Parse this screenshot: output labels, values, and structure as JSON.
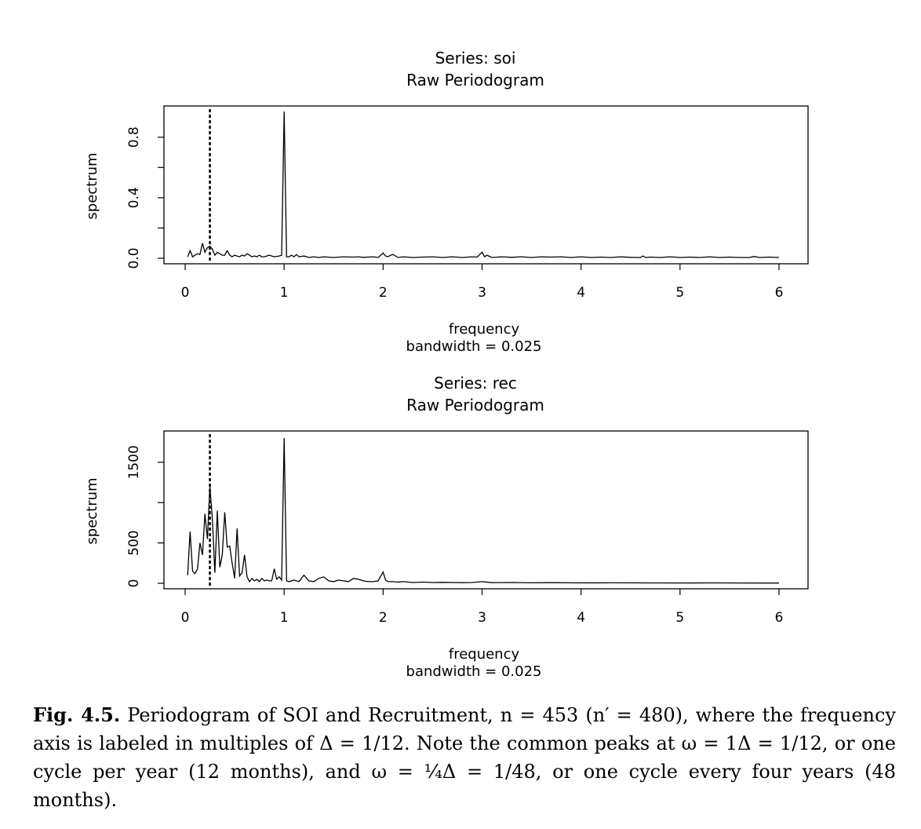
{
  "chart_data": [
    {
      "type": "line",
      "title": "Series: soi",
      "subtitle": "Raw Periodogram",
      "xlabel": "frequency",
      "xlabel2": "bandwidth = 0.025",
      "ylabel": "spectrum",
      "xlim": [
        0,
        6
      ],
      "ylim": [
        0,
        0.97
      ],
      "xticks": [
        "0",
        "1",
        "2",
        "3",
        "4",
        "5",
        "6"
      ],
      "xtick_values": [
        0,
        1,
        2,
        3,
        4,
        5,
        6
      ],
      "yticks": [
        "0.0",
        "0.4",
        "0.8"
      ],
      "ytick_values": [
        0,
        0.4,
        0.8
      ],
      "yminor_ticks": [
        0.2,
        0.6
      ],
      "grid": false,
      "reference_line": {
        "x": 0.25,
        "style": "dotted"
      },
      "series": [
        {
          "x": [
            0.025,
            0.05,
            0.075,
            0.1,
            0.125,
            0.15,
            0.175,
            0.2,
            0.225,
            0.25,
            0.275,
            0.3,
            0.325,
            0.35,
            0.375,
            0.4,
            0.425,
            0.45,
            0.475,
            0.5,
            0.525,
            0.55,
            0.575,
            0.6,
            0.625,
            0.65,
            0.675,
            0.7,
            0.725,
            0.75,
            0.775,
            0.8,
            0.85,
            0.9,
            0.95,
            0.975,
            1.0,
            1.025,
            1.05,
            1.075,
            1.1,
            1.125,
            1.15,
            1.2,
            1.25,
            1.3,
            1.35,
            1.4,
            1.5,
            1.6,
            1.7,
            1.75,
            1.8,
            1.9,
            1.95,
            2.0,
            2.025,
            2.05,
            2.075,
            2.1,
            2.15,
            2.2,
            2.3,
            2.4,
            2.5,
            2.6,
            2.7,
            2.8,
            2.9,
            2.95,
            3.0,
            3.025,
            3.05,
            3.1,
            3.2,
            3.3,
            3.4,
            3.5,
            3.6,
            3.7,
            3.8,
            3.9,
            4.0,
            4.1,
            4.2,
            4.3,
            4.4,
            4.5,
            4.6,
            4.625,
            4.65,
            4.7,
            4.8,
            4.9,
            5.0,
            5.1,
            5.2,
            5.3,
            5.4,
            5.5,
            5.6,
            5.7,
            5.75,
            5.8,
            5.9,
            6.0
          ],
          "y": [
            0.01,
            0.05,
            0.01,
            0.02,
            0.03,
            0.025,
            0.1,
            0.04,
            0.07,
            0.08,
            0.06,
            0.02,
            0.04,
            0.03,
            0.02,
            0.02,
            0.05,
            0.02,
            0.01,
            0.02,
            0.015,
            0.01,
            0.02,
            0.015,
            0.03,
            0.02,
            0.01,
            0.015,
            0.01,
            0.02,
            0.01,
            0.01,
            0.02,
            0.01,
            0.015,
            0.02,
            0.97,
            0.01,
            0.01,
            0.02,
            0.01,
            0.025,
            0.01,
            0.015,
            0.005,
            0.01,
            0.005,
            0.01,
            0.005,
            0.01,
            0.008,
            0.01,
            0.006,
            0.01,
            0.005,
            0.035,
            0.015,
            0.01,
            0.02,
            0.025,
            0.005,
            0.01,
            0.005,
            0.008,
            0.01,
            0.005,
            0.01,
            0.005,
            0.01,
            0.008,
            0.04,
            0.01,
            0.02,
            0.005,
            0.01,
            0.006,
            0.01,
            0.005,
            0.01,
            0.008,
            0.01,
            0.005,
            0.01,
            0.005,
            0.008,
            0.005,
            0.01,
            0.006,
            0.005,
            0.015,
            0.005,
            0.008,
            0.005,
            0.01,
            0.005,
            0.008,
            0.005,
            0.01,
            0.005,
            0.008,
            0.005,
            0.005,
            0.012,
            0.005,
            0.008,
            0.005
          ]
        }
      ]
    },
    {
      "type": "line",
      "title": "Series: rec",
      "subtitle": "Raw Periodogram",
      "xlabel": "frequency",
      "xlabel2": "bandwidth = 0.025",
      "ylabel": "spectrum",
      "xlim": [
        0,
        6
      ],
      "ylim": [
        0,
        1820
      ],
      "xticks": [
        "0",
        "1",
        "2",
        "3",
        "4",
        "5",
        "6"
      ],
      "xtick_values": [
        0,
        1,
        2,
        3,
        4,
        5,
        6
      ],
      "yticks": [
        "0",
        "500",
        "1500"
      ],
      "ytick_values": [
        0,
        500,
        1500
      ],
      "yminor_ticks": [
        1000
      ],
      "grid": false,
      "reference_line": {
        "x": 0.25,
        "style": "dotted"
      },
      "series": [
        {
          "x": [
            0.025,
            0.05,
            0.075,
            0.1,
            0.125,
            0.15,
            0.175,
            0.2,
            0.225,
            0.25,
            0.275,
            0.3,
            0.325,
            0.35,
            0.375,
            0.4,
            0.425,
            0.45,
            0.475,
            0.5,
            0.525,
            0.55,
            0.575,
            0.6,
            0.625,
            0.65,
            0.675,
            0.7,
            0.725,
            0.75,
            0.775,
            0.8,
            0.825,
            0.85,
            0.875,
            0.9,
            0.925,
            0.95,
            0.975,
            1.0,
            1.025,
            1.05,
            1.1,
            1.15,
            1.2,
            1.25,
            1.3,
            1.35,
            1.4,
            1.45,
            1.5,
            1.55,
            1.6,
            1.65,
            1.7,
            1.75,
            1.8,
            1.85,
            1.9,
            1.95,
            2.0,
            2.025,
            2.05,
            2.1,
            2.15,
            2.2,
            2.3,
            2.4,
            2.5,
            2.6,
            2.7,
            2.8,
            2.9,
            3.0,
            3.1,
            3.3,
            3.5,
            3.7,
            4.0,
            4.3,
            4.6,
            5.0,
            5.3,
            5.6,
            6.0
          ],
          "y": [
            100,
            640,
            150,
            120,
            180,
            500,
            350,
            860,
            550,
            1200,
            800,
            130,
            900,
            200,
            350,
            880,
            450,
            460,
            250,
            60,
            680,
            90,
            130,
            350,
            80,
            20,
            60,
            30,
            50,
            20,
            60,
            30,
            40,
            30,
            30,
            180,
            50,
            80,
            40,
            1800,
            30,
            20,
            40,
            20,
            100,
            30,
            20,
            60,
            80,
            30,
            20,
            40,
            30,
            20,
            60,
            50,
            30,
            20,
            20,
            30,
            140,
            40,
            20,
            20,
            15,
            20,
            10,
            15,
            10,
            12,
            10,
            8,
            10,
            20,
            8,
            10,
            6,
            8,
            5,
            6,
            5,
            4,
            5,
            4,
            3
          ]
        }
      ]
    }
  ],
  "caption": {
    "lead": "Fig. 4.5.",
    "text": "Periodogram of SOI and Recruitment, n = 453 (n′ = 480), where the frequency axis is labeled in multiples of Δ = 1/12. Note the common peaks at ω = 1Δ = 1/12, or one cycle per year (12 months), and ω = ¼Δ = 1/48, or one cycle every four years (48 months)."
  }
}
